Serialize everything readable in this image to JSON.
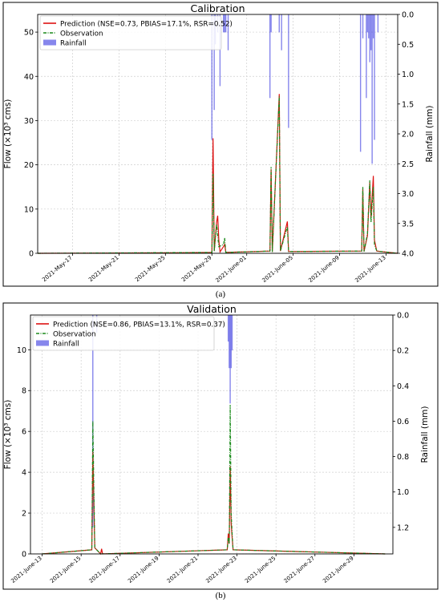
{
  "colors": {
    "prediction": "#dd1111",
    "observation": "#1a8a1a",
    "rainfall": "#2222dd",
    "grid": "#cfcfcf"
  },
  "chart_data": [
    {
      "type": "line",
      "title": "Calibration",
      "panel_label": "(a)",
      "ylabel": "Flow (×10³ cms)",
      "y2label": "Rainfall (mm)",
      "ylim": [
        0,
        54
      ],
      "y2lim": [
        4.0,
        0.0
      ],
      "xlim": [
        "2021-05-14",
        "2021-06-14"
      ],
      "yticks": [
        0,
        10,
        20,
        30,
        40,
        50
      ],
      "y2ticks": [
        0.0,
        0.5,
        1.0,
        1.5,
        2.0,
        2.5,
        3.0,
        3.5,
        4.0
      ],
      "y2ticks_text": [
        "0.0",
        "0.5",
        "1.0",
        "1.5",
        "2.0",
        "2.5",
        "3.0",
        "3.5",
        "4.0"
      ],
      "xticks": [
        "2021-May-17",
        "2021-May-21",
        "2021-May-25",
        "2021-May-29",
        "2021-June-01",
        "2021-June-05",
        "2021-June-09",
        "2021-June-13"
      ],
      "xtick_dates": [
        "2021-05-17",
        "2021-05-21",
        "2021-05-25",
        "2021-05-29",
        "2021-06-01",
        "2021-06-05",
        "2021-06-09",
        "2021-06-13"
      ],
      "legend": [
        "Prediction (NSE=0.73, PBIAS=17.1%, RSR=0.52)",
        "Observation",
        "Rainfall"
      ],
      "legend_position": "top-left",
      "series": [
        {
          "name": "Prediction (NSE=0.73, PBIAS=17.1%, RSR=0.52)",
          "points": [
            [
              "2021-05-14",
              0
            ],
            [
              "2021-05-26",
              0.1
            ],
            [
              "2021-05-29.0",
              0.2
            ],
            [
              "2021-05-29.1",
              26
            ],
            [
              "2021-05-29.2",
              0.5
            ],
            [
              "2021-05-29.4",
              7
            ],
            [
              "2021-05-29.5",
              8.5
            ],
            [
              "2021-05-29.6",
              3
            ],
            [
              "2021-05-29.7",
              0.3
            ],
            [
              "2021-05-30.0",
              1.5
            ],
            [
              "2021-05-30.1",
              2
            ],
            [
              "2021-05-30.2",
              0.2
            ],
            [
              "2021-06-03.0",
              0.5
            ],
            [
              "2021-06-03.1",
              19
            ],
            [
              "2021-06-03.2",
              0.3
            ],
            [
              "2021-06-03.8",
              36
            ],
            [
              "2021-06-03.9",
              0.5
            ],
            [
              "2021-06-04.5",
              7.2
            ],
            [
              "2021-06-04.6",
              0.4
            ],
            [
              "2021-06-10.9",
              0.5
            ],
            [
              "2021-06-11.0",
              14.5
            ],
            [
              "2021-06-11.1",
              0.4
            ],
            [
              "2021-06-11.4",
              4
            ],
            [
              "2021-06-11.6",
              16
            ],
            [
              "2021-06-11.7",
              8
            ],
            [
              "2021-06-11.9",
              17.5
            ],
            [
              "2021-06-12.0",
              3
            ],
            [
              "2021-06-12.2",
              0.5
            ],
            [
              "2021-06-14",
              0
            ]
          ]
        },
        {
          "name": "Observation",
          "points": [
            [
              "2021-05-14",
              0
            ],
            [
              "2021-05-29.0",
              0.2
            ],
            [
              "2021-05-29.1",
              18
            ],
            [
              "2021-05-29.2",
              0.5
            ],
            [
              "2021-05-29.4",
              6.5
            ],
            [
              "2021-05-29.5",
              4
            ],
            [
              "2021-05-29.6",
              1.5
            ],
            [
              "2021-05-30.0",
              2
            ],
            [
              "2021-05-30.1",
              3.5
            ],
            [
              "2021-05-30.2",
              0.2
            ],
            [
              "2021-06-03.0",
              0.5
            ],
            [
              "2021-06-03.1",
              19.5
            ],
            [
              "2021-06-03.2",
              0.3
            ],
            [
              "2021-06-03.8",
              35.5
            ],
            [
              "2021-06-03.9",
              0.5
            ],
            [
              "2021-06-04.5",
              6
            ],
            [
              "2021-06-04.6",
              0.4
            ],
            [
              "2021-06-10.9",
              0.5
            ],
            [
              "2021-06-11.0",
              15
            ],
            [
              "2021-06-11.1",
              0.4
            ],
            [
              "2021-06-11.4",
              4.5
            ],
            [
              "2021-06-11.6",
              16.5
            ],
            [
              "2021-06-11.7",
              7
            ],
            [
              "2021-06-11.9",
              15
            ],
            [
              "2021-06-12.0",
              2
            ],
            [
              "2021-06-12.2",
              0.5
            ],
            [
              "2021-06-14",
              0
            ]
          ]
        }
      ],
      "rainfall": [
        [
          "2021-05-29.0",
          2.1
        ],
        [
          "2021-05-29.2",
          1.6
        ],
        [
          "2021-05-29.3",
          0.5
        ],
        [
          "2021-05-29.5",
          0.3
        ],
        [
          "2021-05-29.7",
          1.2
        ],
        [
          "2021-05-30.0",
          0.3
        ],
        [
          "2021-05-30.1",
          0.3
        ],
        [
          "2021-05-30.2",
          0.3
        ],
        [
          "2021-05-30.4",
          0.6
        ],
        [
          "2021-06-03.0",
          1.4
        ],
        [
          "2021-06-03.1",
          0.3
        ],
        [
          "2021-06-03.8",
          0.3
        ],
        [
          "2021-06-04.0",
          0.6
        ],
        [
          "2021-06-04.6",
          1.9
        ],
        [
          "2021-06-10.8",
          2.3
        ],
        [
          "2021-06-11.0",
          0.4
        ],
        [
          "2021-06-11.3",
          1.4
        ],
        [
          "2021-06-11.4",
          0.3
        ],
        [
          "2021-06-11.5",
          0.4
        ],
        [
          "2021-06-11.6",
          0.8
        ],
        [
          "2021-06-11.7",
          0.6
        ],
        [
          "2021-06-11.8",
          2.5
        ],
        [
          "2021-06-11.9",
          0.4
        ],
        [
          "2021-06-12.0",
          2.1
        ],
        [
          "2021-06-12.3",
          0.3
        ]
      ]
    },
    {
      "type": "line",
      "title": "Validation",
      "panel_label": "(b)",
      "ylabel": "Flow (×10³ cms)",
      "y2label": "Rainfall (mm)",
      "ylim": [
        0,
        11.7
      ],
      "y2lim": [
        1.35,
        0.0
      ],
      "xlim": [
        "2021-06-12.4",
        "2021-06-31"
      ],
      "yticks": [
        0,
        2,
        4,
        6,
        8,
        10
      ],
      "y2ticks": [
        0.0,
        0.2,
        0.4,
        0.6,
        0.8,
        1.0,
        1.2
      ],
      "y2ticks_text": [
        "0.0",
        "0.2",
        "0.4",
        "0.6",
        "0.8",
        "1.0",
        "1.2"
      ],
      "xticks": [
        "2021-June-13",
        "2021-June-15",
        "2021-June-17",
        "2021-June-19",
        "2021-June-21",
        "2021-June-23",
        "2021-June-25",
        "2021-June-27",
        "2021-June-29"
      ],
      "xtick_dates": [
        "2021-06-13",
        "2021-06-15",
        "2021-06-17",
        "2021-06-19",
        "2021-06-21",
        "2021-06-23",
        "2021-06-25",
        "2021-06-27",
        "2021-06-29"
      ],
      "legend": [
        "Prediction (NSE=0.86, PBIAS=13.1%, RSR=0.37)",
        "Observation",
        "Rainfall"
      ],
      "legend_position": "top-left",
      "series": [
        {
          "name": "Prediction (NSE=0.86, PBIAS=13.1%, RSR=0.37)",
          "points": [
            [
              "2021-06-13",
              0
            ],
            [
              "2021-06-15.55",
              0.2
            ],
            [
              "2021-06-15.6",
              5
            ],
            [
              "2021-06-15.7",
              0.3
            ],
            [
              "2021-06-16.0",
              0
            ],
            [
              "2021-06-16.05",
              0.25
            ],
            [
              "2021-06-16.1",
              0
            ],
            [
              "2021-06-22.5",
              0.2
            ],
            [
              "2021-06-22.55",
              1
            ],
            [
              "2021-06-22.6",
              0.5
            ],
            [
              "2021-06-22.65",
              4.3
            ],
            [
              "2021-06-22.7",
              1.5
            ],
            [
              "2021-06-22.75",
              0.8
            ],
            [
              "2021-06-22.8",
              0.2
            ],
            [
              "2021-06-30.6",
              0
            ]
          ]
        },
        {
          "name": "Observation",
          "points": [
            [
              "2021-06-13",
              0
            ],
            [
              "2021-06-15.55",
              0.2
            ],
            [
              "2021-06-15.6",
              6.5
            ],
            [
              "2021-06-15.7",
              0.3
            ],
            [
              "2021-06-16.0",
              0
            ],
            [
              "2021-06-22.5",
              0.2
            ],
            [
              "2021-06-22.55",
              0.8
            ],
            [
              "2021-06-22.6",
              0.5
            ],
            [
              "2021-06-22.65",
              7.3
            ],
            [
              "2021-06-22.7",
              2
            ],
            [
              "2021-06-22.75",
              1
            ],
            [
              "2021-06-22.8",
              0.2
            ],
            [
              "2021-06-30.6",
              0
            ]
          ]
        }
      ],
      "rainfall": [
        [
          "2021-06-15.6",
          1.2
        ],
        [
          "2021-06-15.8",
          0.1
        ],
        [
          "2021-06-22.55",
          0.15
        ],
        [
          "2021-06-22.6",
          0.3
        ],
        [
          "2021-06-22.65",
          0.5
        ],
        [
          "2021-06-22.7",
          0.3
        ],
        [
          "2021-06-22.75",
          0.2
        ]
      ]
    }
  ]
}
